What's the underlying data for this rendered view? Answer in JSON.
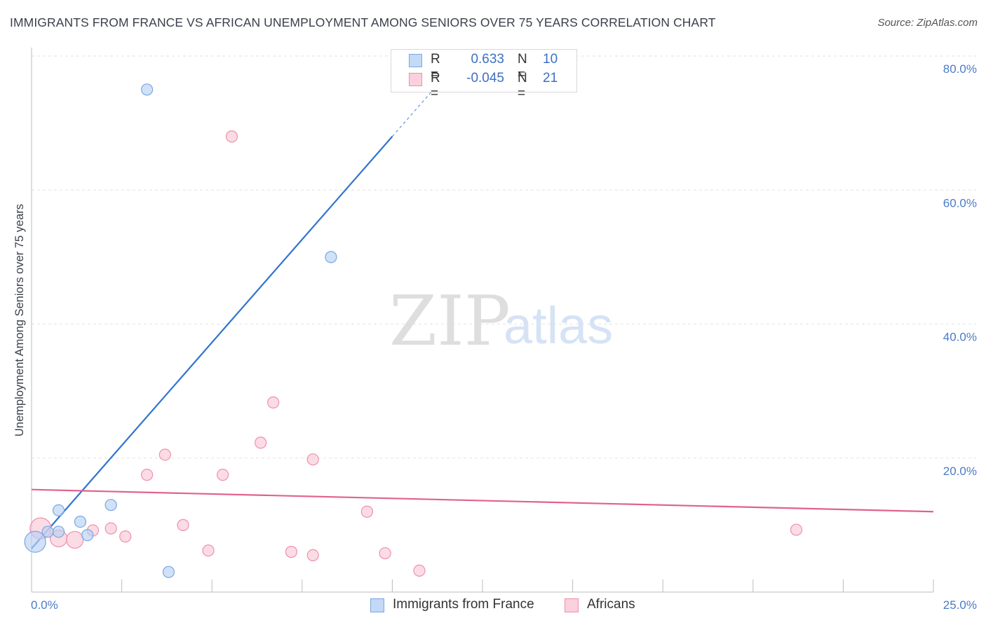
{
  "title": "IMMIGRANTS FROM FRANCE VS AFRICAN UNEMPLOYMENT AMONG SENIORS OVER 75 YEARS CORRELATION CHART",
  "source": "Source: ZipAtlas.com",
  "watermark": {
    "zip": "ZIP",
    "atlas": "atlas"
  },
  "legend_top": {
    "rows": [
      {
        "r_label": "R =",
        "r_value": "0.633",
        "n_label": "N =",
        "n_value": "10"
      },
      {
        "r_label": "R =",
        "r_value": "-0.045",
        "n_label": "N =",
        "n_value": "21"
      }
    ]
  },
  "legend_bottom": [
    {
      "label": "Immigrants from France"
    },
    {
      "label": "Africans"
    }
  ],
  "colors": {
    "france_fill": "#b8d1f3",
    "france_stroke": "#7aa6e3",
    "france_line": "#2f74d0",
    "africans_fill": "#f8c4d3",
    "africans_stroke": "#f08fae",
    "africans_line": "#e0628d",
    "axis_text": "#4a7cc7",
    "grid": "#e3e3e3"
  },
  "chart_data": {
    "type": "scatter",
    "title": "IMMIGRANTS FROM FRANCE VS AFRICAN UNEMPLOYMENT AMONG SENIORS OVER 75 YEARS CORRELATION CHART",
    "xlabel": "",
    "ylabel": "Unemployment Among Seniors over 75 years",
    "xlim": [
      0,
      25
    ],
    "ylim": [
      0,
      82
    ],
    "x_tick_labels": [
      "0.0%",
      "25.0%"
    ],
    "y_ticks": [
      20,
      40,
      60,
      80
    ],
    "y_tick_labels": [
      "20.0%",
      "40.0%",
      "60.0%",
      "80.0%"
    ],
    "series": [
      {
        "name": "Immigrants from France",
        "r": 0.633,
        "n": 10,
        "points": [
          {
            "x": 0.1,
            "y": 7.5,
            "size": "large"
          },
          {
            "x": 0.45,
            "y": 9.0
          },
          {
            "x": 0.75,
            "y": 12.2
          },
          {
            "x": 0.75,
            "y": 9.0
          },
          {
            "x": 1.35,
            "y": 10.5
          },
          {
            "x": 1.55,
            "y": 8.5
          },
          {
            "x": 2.2,
            "y": 13.0
          },
          {
            "x": 3.2,
            "y": 75.0
          },
          {
            "x": 3.8,
            "y": 3.0
          },
          {
            "x": 8.3,
            "y": 50.0
          }
        ],
        "trend": {
          "x_start": 0.0,
          "y_start": 6.5,
          "x_solid_end": 10.0,
          "x_dash_end": 11.5
        }
      },
      {
        "name": "Africans",
        "r": -0.045,
        "n": 21,
        "points": [
          {
            "x": 0.25,
            "y": 9.5,
            "size": "large"
          },
          {
            "x": 0.75,
            "y": 8.0,
            "size": "medium"
          },
          {
            "x": 1.2,
            "y": 7.8,
            "size": "medium"
          },
          {
            "x": 1.7,
            "y": 9.2
          },
          {
            "x": 2.2,
            "y": 9.5
          },
          {
            "x": 2.6,
            "y": 8.3
          },
          {
            "x": 3.2,
            "y": 17.5
          },
          {
            "x": 3.7,
            "y": 20.5
          },
          {
            "x": 4.2,
            "y": 10.0
          },
          {
            "x": 4.9,
            "y": 6.2
          },
          {
            "x": 5.3,
            "y": 17.5
          },
          {
            "x": 5.55,
            "y": 68.0
          },
          {
            "x": 6.35,
            "y": 22.3
          },
          {
            "x": 6.7,
            "y": 28.3
          },
          {
            "x": 7.2,
            "y": 6.0
          },
          {
            "x": 7.8,
            "y": 19.8
          },
          {
            "x": 7.8,
            "y": 5.5
          },
          {
            "x": 9.3,
            "y": 12.0
          },
          {
            "x": 9.8,
            "y": 5.8
          },
          {
            "x": 10.75,
            "y": 3.2
          },
          {
            "x": 21.2,
            "y": 9.3
          }
        ],
        "trend": {
          "x_start": 0.0,
          "y_start": 15.3,
          "x_end": 25.0,
          "y_end": 12.0
        }
      }
    ]
  }
}
